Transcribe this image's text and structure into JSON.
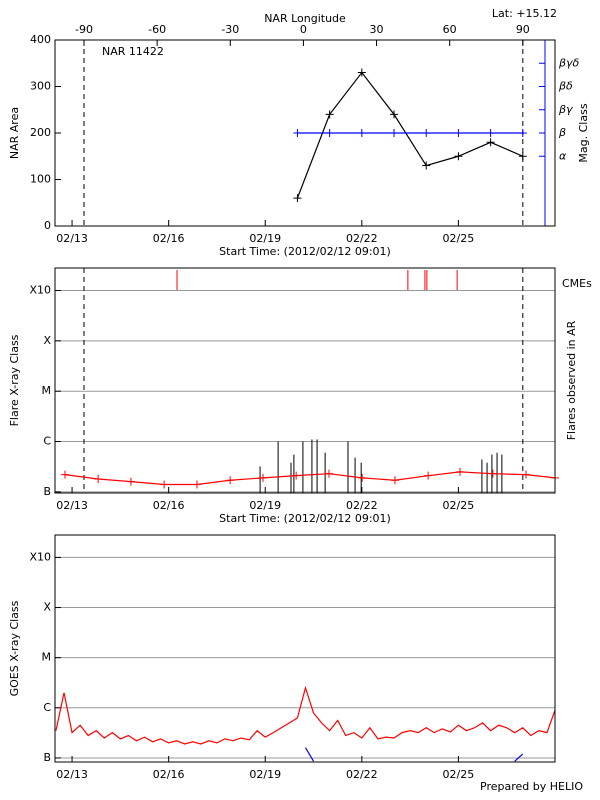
{
  "chart_data": [
    {
      "type": "line",
      "title": "NAR 11422",
      "annotation": "Lat: +15.12",
      "x_top_label": "NAR Longitude",
      "ylabel": "NAR Area",
      "y2label": "Mag. Class",
      "xlabel": "Start Time: (2012/02/12 09:01)",
      "xlim": [
        12.47,
        28.0
      ],
      "xticks": [
        {
          "value": 13,
          "label": "02/13"
        },
        {
          "value": 16,
          "label": "02/16"
        },
        {
          "value": 19,
          "label": "02/19"
        },
        {
          "value": 22,
          "label": "02/22"
        },
        {
          "value": 25,
          "label": "02/25"
        }
      ],
      "x2lim": [
        -101.9,
        103.2
      ],
      "x2ticks": [
        -90,
        -60,
        -30,
        0,
        30,
        60,
        90
      ],
      "limb_lines": [
        -90,
        90
      ],
      "ylim": [
        0,
        400
      ],
      "yticks": [
        0,
        100,
        200,
        300,
        400
      ],
      "y2lim": [
        0,
        8
      ],
      "y2color": "#0000ff",
      "y2ticks": [
        {
          "value": 3,
          "label": "α"
        },
        {
          "value": 4,
          "label": "β"
        },
        {
          "value": 5,
          "label": "βγ"
        },
        {
          "value": 6,
          "label": "βδ"
        },
        {
          "value": 7,
          "label": "βγδ"
        }
      ],
      "x": [
        20.0,
        21.0,
        22.0,
        23.0,
        24.0,
        25.0,
        26.0,
        27.0
      ],
      "series": [
        {
          "color": "#000000",
          "marker": "plus",
          "values": [
            60,
            240,
            330,
            240,
            130,
            150,
            180,
            150
          ]
        },
        {
          "color": "#0000ff",
          "marker": "plus",
          "axis": "y2",
          "values": [
            4,
            4,
            4,
            4,
            4,
            4,
            4,
            4
          ]
        }
      ]
    },
    {
      "type": "timeline",
      "ylabel": "Flare X-ray Class",
      "y2label": "Flares observed in AR",
      "xlabel": "Start Time: (2012/02/12 09:01)",
      "log": true,
      "grid": true,
      "xlim": [
        12.47,
        28.0
      ],
      "xticks": [
        {
          "value": 13,
          "label": "02/13"
        },
        {
          "value": 16,
          "label": "02/16"
        },
        {
          "value": 19,
          "label": "02/19"
        },
        {
          "value": 22,
          "label": "02/22"
        },
        {
          "value": 25,
          "label": "02/25"
        }
      ],
      "ylim": [
        9.5e-08,
        0.0028
      ],
      "yticks": [
        {
          "value": 1e-07,
          "label": "B"
        },
        {
          "value": 1e-06,
          "label": "C"
        },
        {
          "value": 1e-05,
          "label": "M"
        },
        {
          "value": 0.0001,
          "label": "X"
        },
        {
          "value": 0.001,
          "label": "X10"
        }
      ],
      "limb_lines": [
        13.37,
        27.0
      ],
      "background": {
        "color": "#ff0000",
        "marker": "plus",
        "x": [
          12.78,
          13.81,
          14.83,
          15.86,
          16.88,
          17.91,
          18.93,
          19.96,
          20.98,
          22.01,
          23.03,
          24.06,
          25.05,
          26.07,
          27.1,
          28.0
        ],
        "values": [
          2.2e-07,
          1.8e-07,
          1.6e-07,
          1.4e-07,
          1.4e-07,
          1.7e-07,
          1.9e-07,
          2.1e-07,
          2.3e-07,
          1.9e-07,
          1.7e-07,
          2.1e-07,
          2.5e-07,
          2.3e-07,
          2.2e-07,
          1.9e-07
        ]
      },
      "flares": {
        "color": "#000000",
        "x": [
          18.84,
          19.4,
          19.8,
          19.89,
          20.17,
          20.45,
          20.61,
          20.86,
          21.57,
          21.79,
          21.98,
          25.73,
          25.89,
          26.04,
          26.2,
          26.35
        ],
        "values": [
          3.2e-07,
          1e-06,
          3.8e-07,
          5.5e-07,
          1e-06,
          1.1e-06,
          1.1e-06,
          6e-07,
          1e-06,
          4.8e-07,
          3.8e-07,
          4.4e-07,
          3.8e-07,
          5.5e-07,
          6e-07,
          5.5e-07
        ]
      },
      "cmes": {
        "name": "CMEs",
        "color": "#ff0000",
        "x": [
          16.26,
          23.43,
          23.96,
          24.02,
          24.96
        ]
      }
    },
    {
      "type": "line",
      "ylabel": "GOES X-ray Class",
      "log": true,
      "grid": true,
      "xlim": [
        12.47,
        28.0
      ],
      "xticks": [
        {
          "value": 13,
          "label": "02/13"
        },
        {
          "value": 16,
          "label": "02/16"
        },
        {
          "value": 19,
          "label": "02/19"
        },
        {
          "value": 22,
          "label": "02/22"
        },
        {
          "value": 25,
          "label": "02/25"
        }
      ],
      "ylim": [
        8.3e-08,
        0.0028
      ],
      "yticks": [
        {
          "value": 1e-07,
          "label": "B"
        },
        {
          "value": 1e-06,
          "label": "C"
        },
        {
          "value": 1e-05,
          "label": "M"
        },
        {
          "value": 0.0001,
          "label": "X"
        },
        {
          "value": 0.001,
          "label": "X10"
        }
      ],
      "x": [
        12.5,
        12.75,
        13,
        13.25,
        13.5,
        13.75,
        14,
        14.25,
        14.5,
        14.75,
        15,
        15.25,
        15.5,
        15.75,
        16,
        16.25,
        16.5,
        16.75,
        17,
        17.25,
        17.5,
        17.75,
        18,
        18.25,
        18.5,
        18.75,
        19,
        19.25,
        19.5,
        19.75,
        20,
        20.25,
        20.5,
        20.75,
        21,
        21.25,
        21.5,
        21.75,
        22,
        22.25,
        22.5,
        22.75,
        23,
        23.25,
        23.5,
        23.75,
        24,
        24.25,
        24.5,
        24.75,
        25,
        25.25,
        25.5,
        25.75,
        26,
        26.25,
        26.5,
        26.75,
        27,
        27.25,
        27.5,
        27.75,
        28
      ],
      "series": [
        {
          "color": "#ff0000",
          "values": [
            3.5e-07,
            2e-06,
            3.2e-07,
            4.5e-07,
            2.8e-07,
            3.5e-07,
            2.5e-07,
            3.2e-07,
            2.4e-07,
            2.8e-07,
            2.2e-07,
            2.6e-07,
            2.1e-07,
            2.4e-07,
            2e-07,
            2.2e-07,
            1.9e-07,
            2.1e-07,
            1.9e-07,
            2.2e-07,
            2e-07,
            2.4e-07,
            2.2e-07,
            2.5e-07,
            2.3e-07,
            3.5e-07,
            2.6e-07,
            3.2e-07,
            4e-07,
            5e-07,
            6.3e-07,
            2.5e-06,
            7.9e-07,
            5e-07,
            3.5e-07,
            5.6e-07,
            2.8e-07,
            3.2e-07,
            2.5e-07,
            4e-07,
            2.4e-07,
            2.6e-07,
            2.5e-07,
            3.2e-07,
            3.5e-07,
            3.2e-07,
            4e-07,
            3.2e-07,
            3.8e-07,
            3.3e-07,
            4.5e-07,
            3.5e-07,
            4e-07,
            5e-07,
            3.5e-07,
            4.5e-07,
            4e-07,
            3.2e-07,
            4e-07,
            2.8e-07,
            3.5e-07,
            3.2e-07,
            8.9e-07
          ]
        },
        {
          "color": "#0000ff",
          "values": [
            null,
            null,
            null,
            null,
            null,
            null,
            null,
            null,
            null,
            null,
            null,
            null,
            null,
            null,
            null,
            null,
            null,
            null,
            null,
            null,
            null,
            null,
            null,
            null,
            null,
            null,
            null,
            null,
            null,
            null,
            null,
            1.6e-07,
            8.6e-08,
            null,
            null,
            null,
            null,
            null,
            null,
            null,
            null,
            null,
            null,
            null,
            null,
            null,
            null,
            null,
            null,
            null,
            null,
            null,
            null,
            null,
            null,
            null,
            null,
            8.6e-08,
            1.2e-07,
            null,
            null,
            null,
            null
          ]
        }
      ]
    }
  ],
  "footer": "Prepared by HELIO"
}
